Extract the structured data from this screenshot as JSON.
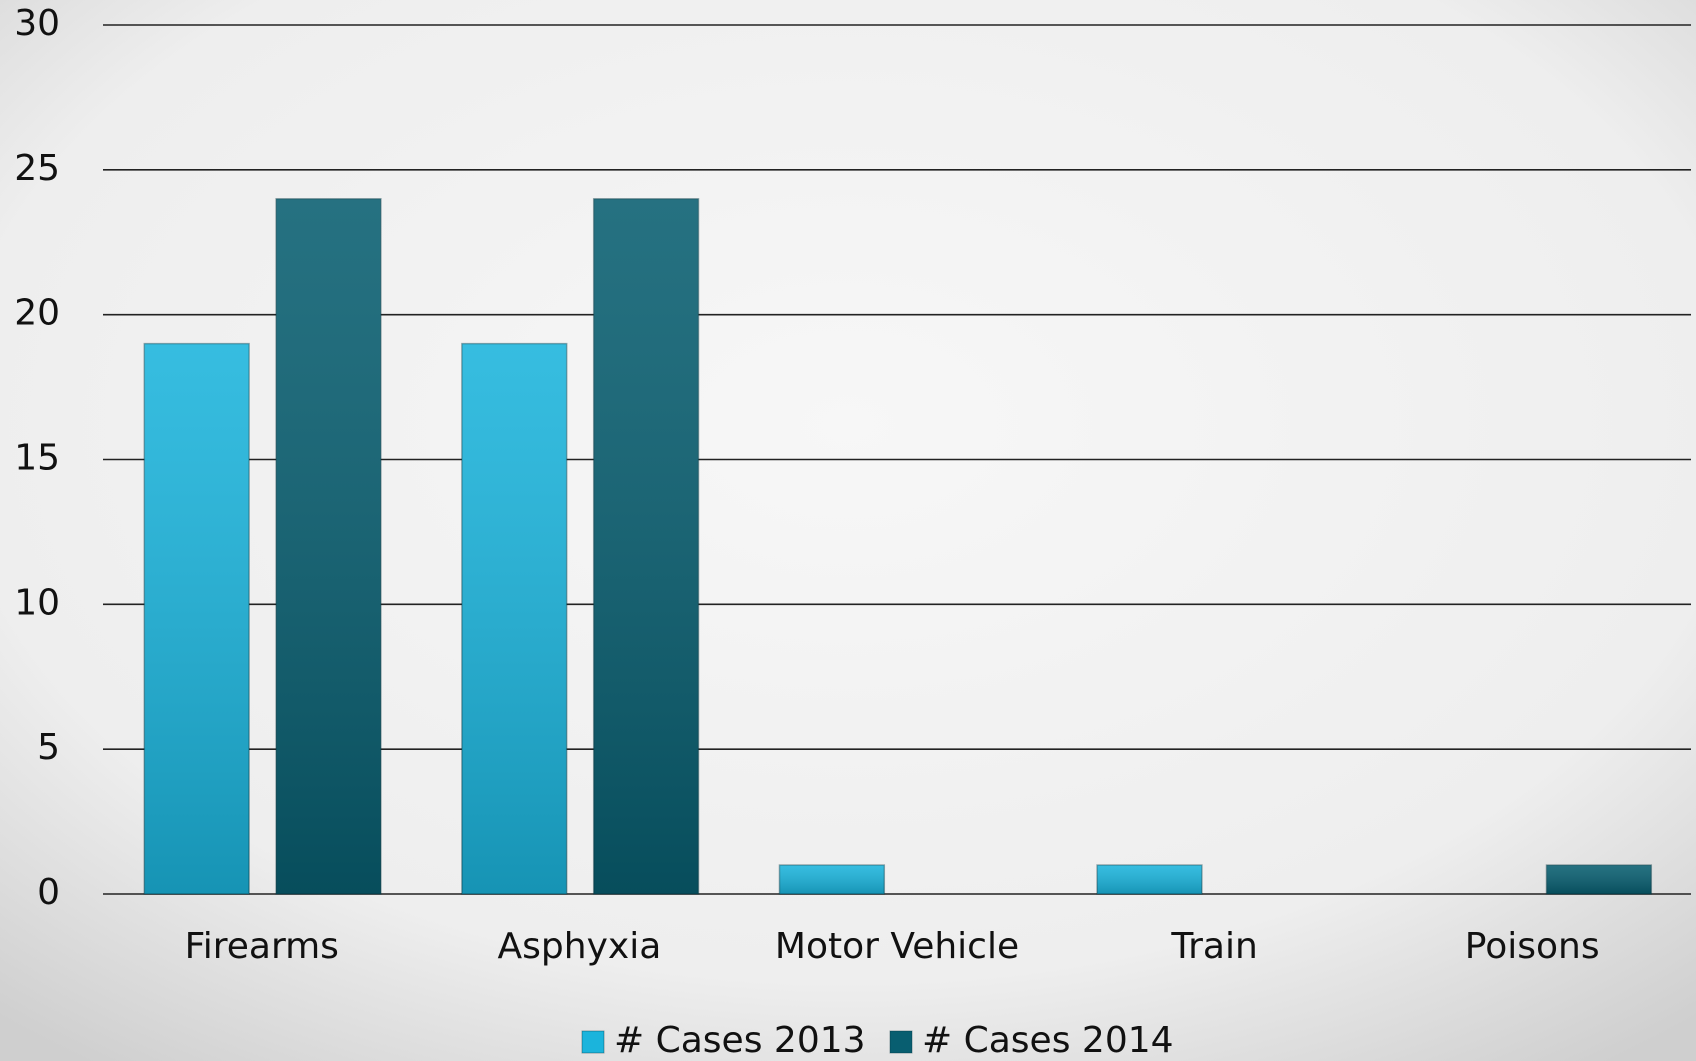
{
  "chart_data": {
    "type": "bar",
    "categories": [
      "Firearms",
      "Asphyxia",
      "Motor Vehicle",
      "Train",
      "Poisons"
    ],
    "series": [
      {
        "name": "# Cases 2013",
        "color": "#1bb4dc",
        "values": [
          19,
          19,
          1,
          1,
          0
        ]
      },
      {
        "name": "# Cases 2014",
        "color": "#085e70",
        "values": [
          24,
          24,
          0,
          0,
          1
        ]
      }
    ],
    "ylim": [
      0,
      30
    ],
    "yticks": [
      0,
      5,
      10,
      15,
      20,
      25,
      30
    ],
    "grid": true,
    "legend": "bottom"
  }
}
